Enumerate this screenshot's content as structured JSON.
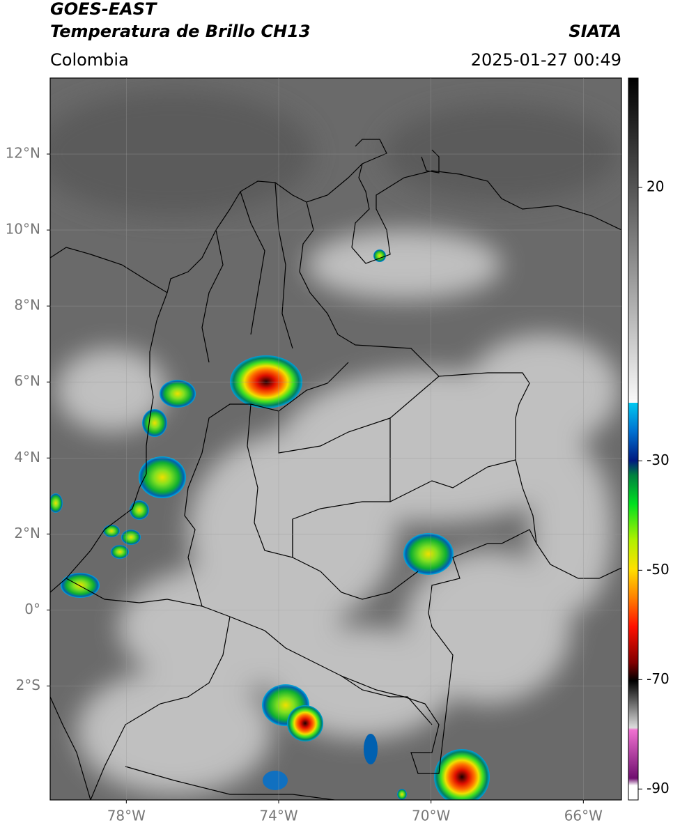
{
  "header": {
    "title": "GOES-EAST",
    "subtitle": "Temperatura de Brillo CH13",
    "source": "SIATA",
    "region": "Colombia",
    "datetime": "2025-01-27 00:49"
  },
  "map": {
    "xlim": [
      -80,
      -65
    ],
    "ylim": [
      -5,
      14
    ],
    "xticks": [
      {
        "value": -78,
        "label": "78°W"
      },
      {
        "value": -74,
        "label": "74°W"
      },
      {
        "value": -70,
        "label": "70°W"
      },
      {
        "value": -66,
        "label": "66°W"
      }
    ],
    "yticks": [
      {
        "value": 12,
        "label": "12°N"
      },
      {
        "value": 10,
        "label": "10°N"
      },
      {
        "value": 8,
        "label": "8°N"
      },
      {
        "value": 6,
        "label": "6°N"
      },
      {
        "value": 4,
        "label": "4°N"
      },
      {
        "value": 2,
        "label": "2°N"
      },
      {
        "value": 0,
        "label": "0°"
      },
      {
        "value": -2,
        "label": "2°S"
      }
    ],
    "grid": true
  },
  "colorbar": {
    "lim": [
      -92,
      40
    ],
    "ticks": [
      20,
      -30,
      -50,
      -70,
      -90
    ]
  }
}
